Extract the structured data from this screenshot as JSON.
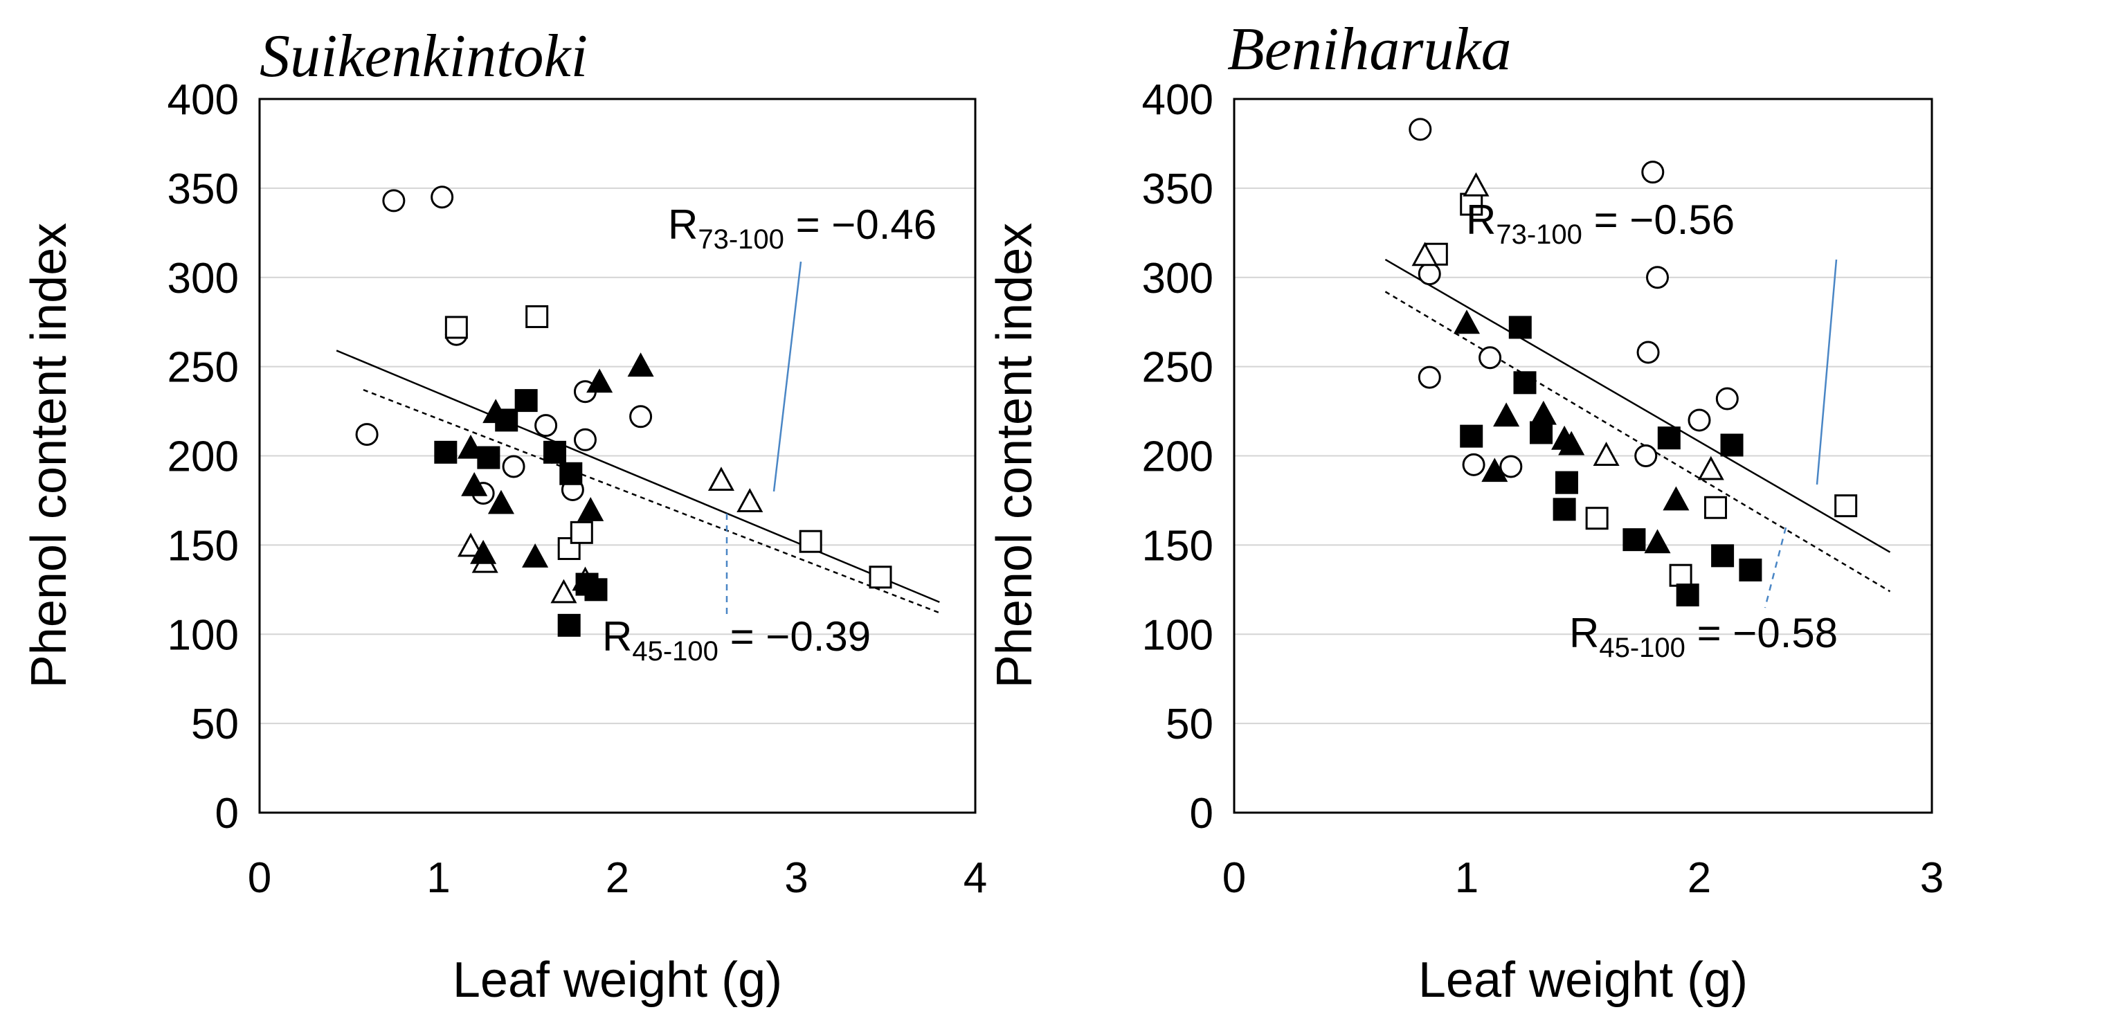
{
  "chart_data": [
    {
      "type": "scatter",
      "title": "Suikenkintoki",
      "xlabel": "Leaf weight (g)",
      "ylabel": "Phenol content index",
      "xlim": [
        0,
        4
      ],
      "ylim": [
        0,
        400
      ],
      "xticks": [
        "0",
        "1",
        "2",
        "3",
        "4"
      ],
      "yticks": [
        "0",
        "50",
        "100",
        "150",
        "200",
        "250",
        "300",
        "350",
        "400"
      ],
      "grid": "horizontal",
      "series": [
        {
          "marker": "open-circle",
          "x": [
            0.6,
            0.75,
            1.02,
            1.1,
            1.25,
            1.42,
            1.6,
            1.75,
            1.82,
            1.82,
            2.13
          ],
          "y": [
            212,
            343,
            345,
            268,
            179,
            194,
            217,
            181,
            236,
            209,
            222
          ]
        },
        {
          "marker": "open-square",
          "x": [
            1.1,
            1.55,
            1.73,
            1.8,
            3.08,
            3.47
          ],
          "y": [
            272,
            278,
            148,
            157,
            152,
            132
          ]
        },
        {
          "marker": "open-triangle",
          "x": [
            1.18,
            1.26,
            1.7,
            1.82,
            2.58,
            2.74
          ],
          "y": [
            149,
            140,
            123,
            130,
            186,
            174
          ]
        },
        {
          "marker": "filled-square",
          "x": [
            1.04,
            1.28,
            1.38,
            1.49,
            1.65,
            1.74,
            1.73,
            1.83,
            1.88
          ],
          "y": [
            202,
            199,
            220,
            231,
            202,
            190,
            105,
            128,
            125
          ]
        },
        {
          "marker": "filled-triangle",
          "x": [
            1.18,
            1.2,
            1.25,
            1.32,
            1.35,
            1.54,
            1.85,
            1.9,
            2.13
          ],
          "y": [
            204,
            183,
            145,
            224,
            173,
            143,
            169,
            241,
            250
          ]
        }
      ],
      "regression_lines": [
        {
          "style": "solid",
          "x": [
            0.43,
            3.8
          ],
          "y": [
            259,
            118
          ]
        },
        {
          "style": "dashed",
          "x": [
            0.58,
            3.8
          ],
          "y": [
            237,
            112
          ]
        }
      ],
      "annotations": [
        {
          "label": "R",
          "subscript": "73-100",
          "value": " = −0.46",
          "line": "solid"
        },
        {
          "label": "R",
          "subscript": "45-100",
          "value": " = −0.39",
          "line": "dashed"
        }
      ]
    },
    {
      "type": "scatter",
      "title": "Beniharuka",
      "xlabel": "Leaf weight (g)",
      "ylabel": "Phenol content index",
      "xlim": [
        0,
        3
      ],
      "ylim": [
        0,
        400
      ],
      "xticks": [
        "0",
        "1",
        "2",
        "3"
      ],
      "yticks": [
        "0",
        "50",
        "100",
        "150",
        "200",
        "250",
        "300",
        "350",
        "400"
      ],
      "grid": "horizontal",
      "series": [
        {
          "marker": "open-circle",
          "x": [
            0.8,
            0.84,
            0.84,
            1.03,
            1.1,
            1.19,
            1.77,
            1.78,
            1.8,
            1.82,
            2.0,
            2.12
          ],
          "y": [
            383,
            302,
            244,
            195,
            255,
            194,
            200,
            258,
            359,
            300,
            220,
            232
          ]
        },
        {
          "marker": "open-square",
          "x": [
            0.87,
            1.02,
            1.56,
            1.92,
            2.07,
            2.63
          ],
          "y": [
            313,
            341,
            165,
            133,
            171,
            172
          ]
        },
        {
          "marker": "open-triangle",
          "x": [
            0.82,
            1.04,
            1.6,
            2.05
          ],
          "y": [
            312,
            351,
            200,
            192
          ]
        },
        {
          "marker": "filled-square",
          "x": [
            1.02,
            1.23,
            1.25,
            1.32,
            1.42,
            1.43,
            1.72,
            1.87,
            1.95,
            2.1,
            2.14,
            2.22
          ],
          "y": [
            211,
            272,
            241,
            213,
            170,
            185,
            153,
            210,
            122,
            144,
            206,
            136
          ]
        },
        {
          "marker": "filled-triangle",
          "x": [
            1.0,
            1.12,
            1.17,
            1.33,
            1.42,
            1.45,
            1.82,
            1.9
          ],
          "y": [
            274,
            191,
            222,
            223,
            209,
            206,
            151,
            175
          ]
        }
      ],
      "regression_lines": [
        {
          "style": "solid",
          "x": [
            0.65,
            2.82
          ],
          "y": [
            310,
            146
          ]
        },
        {
          "style": "dashed",
          "x": [
            0.65,
            2.82
          ],
          "y": [
            292,
            124
          ]
        }
      ],
      "annotations": [
        {
          "label": "R",
          "subscript": "73-100",
          "value": " = −0.56",
          "line": "solid"
        },
        {
          "label": "R",
          "subscript": "45-100",
          "value": " = −0.58",
          "line": "dashed"
        }
      ]
    }
  ]
}
